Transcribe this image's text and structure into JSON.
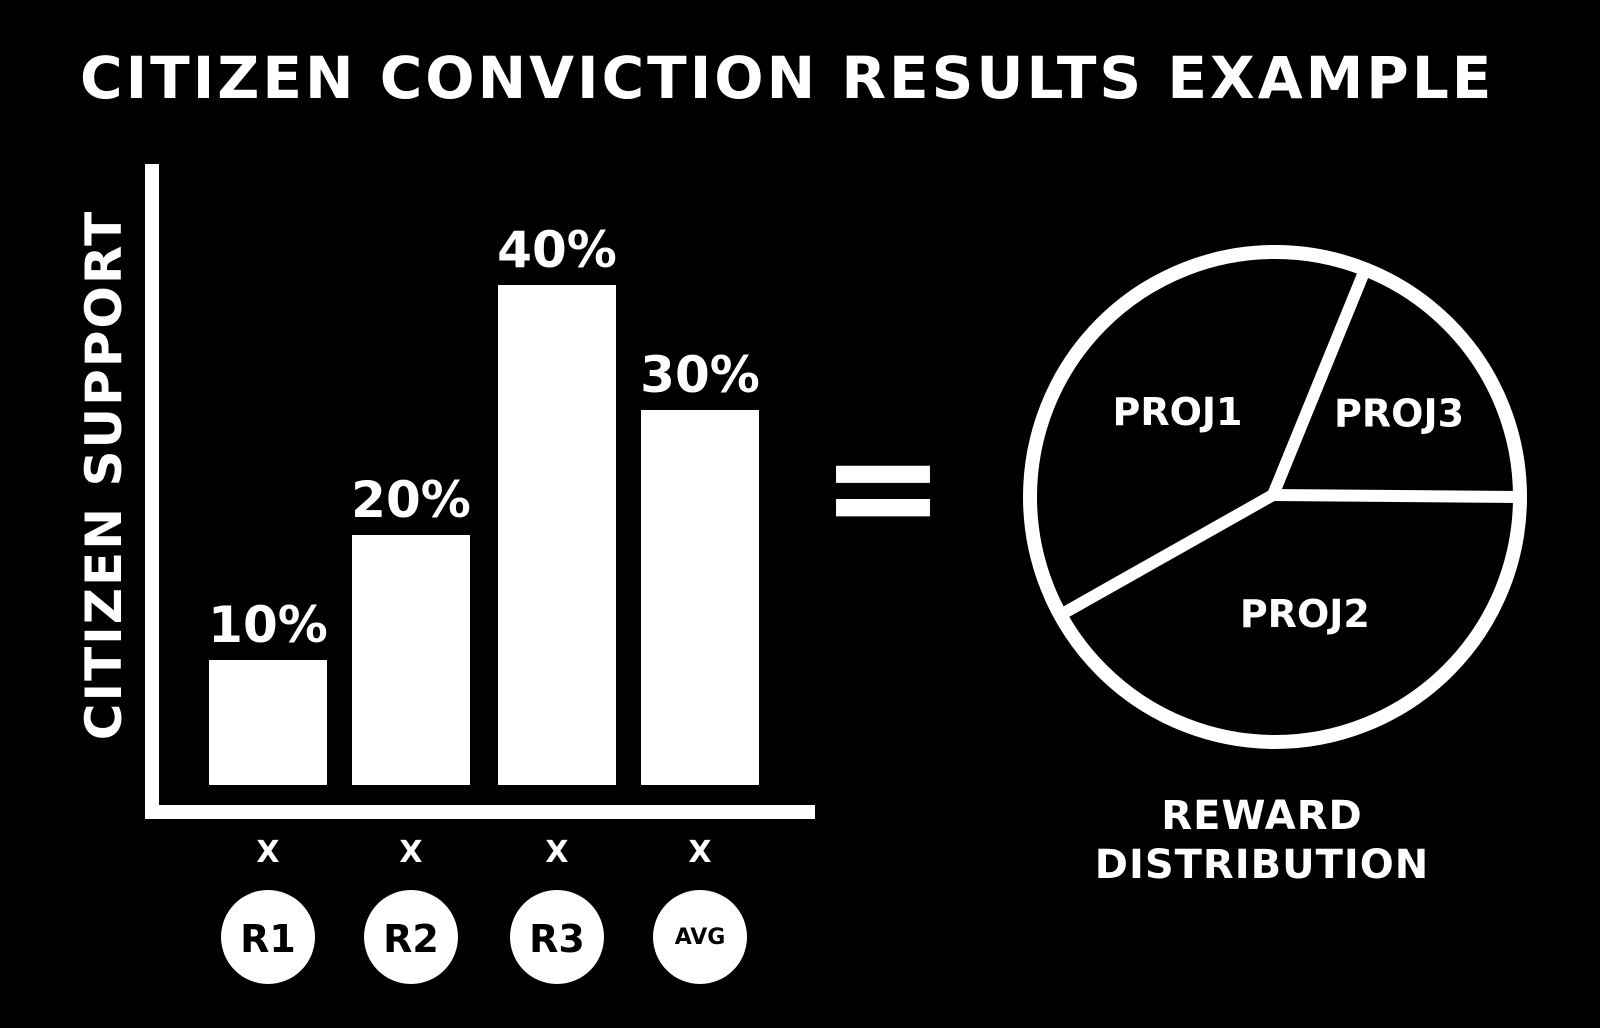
{
  "title": "CITIZEN CONVICTION RESULTS EXAMPLE",
  "colors": {
    "background": "#000000",
    "foreground": "#ffffff"
  },
  "chart_data": [
    {
      "type": "bar",
      "ylabel": "CITIZEN SUPPORT",
      "categories": [
        "R1",
        "R2",
        "R3",
        "AVG"
      ],
      "values": [
        10,
        20,
        40,
        30
      ],
      "data_labels": [
        "10%",
        "20%",
        "40%",
        "30%"
      ],
      "multiplier_labels": [
        "X",
        "X",
        "X",
        "X"
      ],
      "ylim": [
        0,
        48
      ],
      "grid": false
    },
    {
      "type": "pie",
      "equals_symbol": "=",
      "labels": [
        "PROJ1",
        "PROJ3",
        "PROJ2"
      ],
      "values": [
        39,
        19,
        42
      ],
      "caption": [
        "REWARD",
        "DISTRIBUTION"
      ]
    }
  ]
}
